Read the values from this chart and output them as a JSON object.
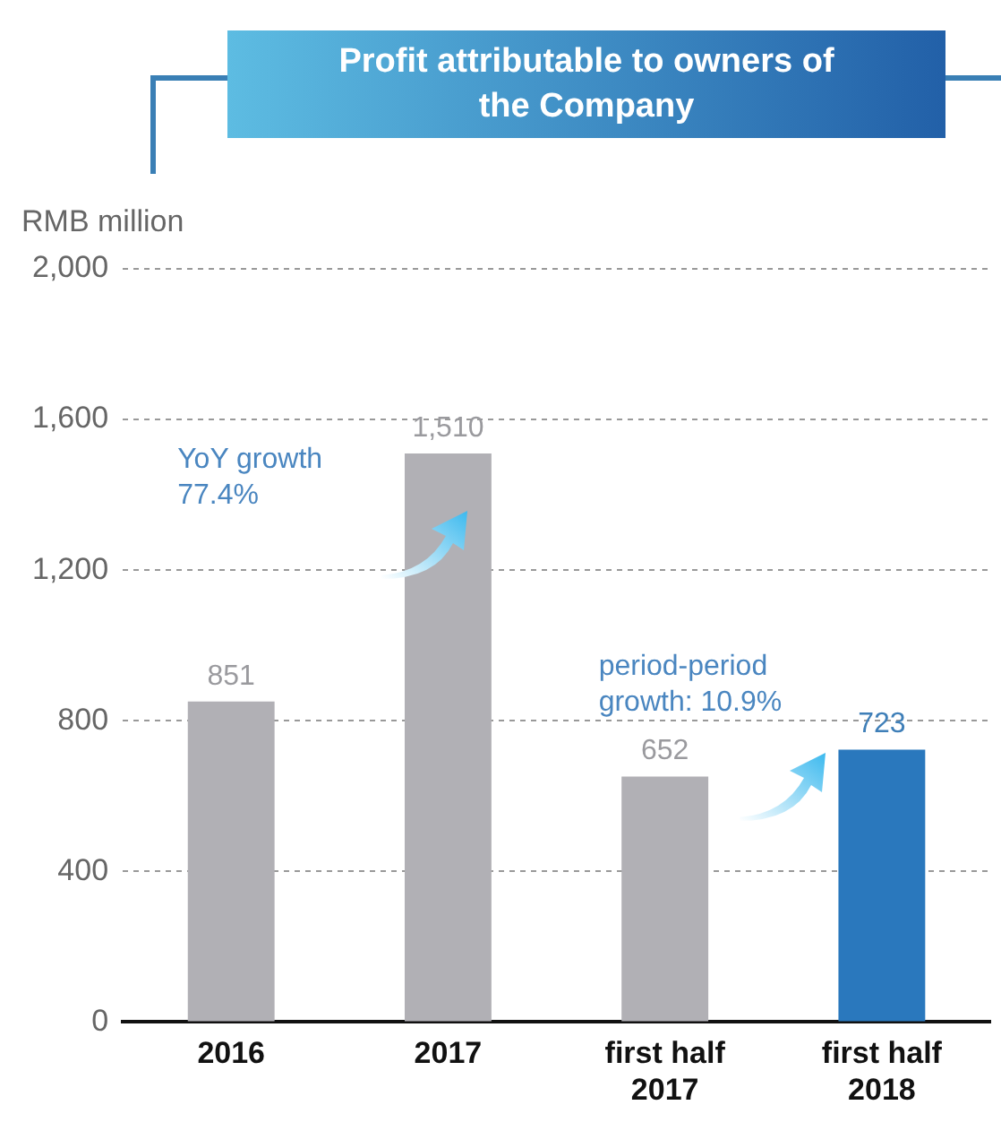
{
  "chart_data": {
    "type": "bar",
    "title": "Profit attributable to owners of the Company",
    "ylabel": "RMB million",
    "categories": [
      "2016",
      "2017",
      "first half 2017",
      "first half 2018"
    ],
    "values": [
      851,
      1510,
      652,
      723
    ],
    "colors": [
      "#b1b0b5",
      "#b1b0b5",
      "#b1b0b5",
      "#2a78bd"
    ],
    "value_labels": [
      "851",
      "1,510",
      "652",
      "723"
    ],
    "ylim": [
      0,
      2000
    ],
    "yticks": [
      0,
      400,
      800,
      {
        "value": 1200,
        "label": "1,200"
      },
      {
        "value": 1600,
        "label": "1,600"
      },
      {
        "value": 2000,
        "label": "2,000"
      }
    ],
    "grid": "y",
    "annotations": [
      "YoY growth\n77.4%",
      "period-period\ngrowth: 10.9%"
    ]
  }
}
